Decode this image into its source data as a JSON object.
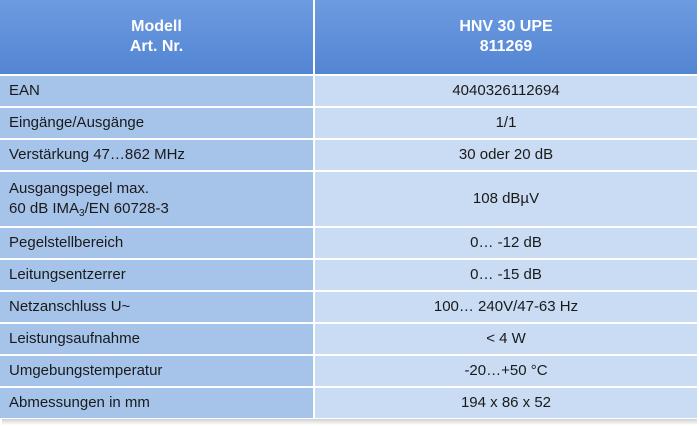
{
  "header": {
    "left": [
      "Modell",
      "Art. Nr."
    ],
    "right": [
      "HNV 30 UPE",
      "811269"
    ]
  },
  "rows": [
    {
      "label": [
        [
          "EAN"
        ]
      ],
      "value": "4040326112694"
    },
    {
      "label": [
        [
          "Eingänge/Ausgänge"
        ]
      ],
      "value": "1/1"
    },
    {
      "label": [
        [
          "Verstärkung 47…862 MHz"
        ]
      ],
      "value": "30 oder 20 dB"
    },
    {
      "label": [
        [
          "Ausgangspegel max."
        ],
        [
          "60 dB IMA",
          "3",
          "/EN 60728-3"
        ]
      ],
      "value": "108 dBµV"
    },
    {
      "label": [
        [
          "Pegelstellbereich"
        ]
      ],
      "value": "0… -12 dB"
    },
    {
      "label": [
        [
          "Leitungsentzerrer"
        ]
      ],
      "value": "0… -15 dB"
    },
    {
      "label": [
        [
          "Netzanschluss U~"
        ]
      ],
      "value": "100… 240V/47-63 Hz"
    },
    {
      "label": [
        [
          "Leistungsaufnahme"
        ]
      ],
      "value": "< 4 W"
    },
    {
      "label": [
        [
          "Umgebungstemperatur"
        ]
      ],
      "value": "-20…+50 °C"
    },
    {
      "label": [
        [
          "Abmessungen in mm"
        ]
      ],
      "value": "194 x 86 x 52"
    }
  ]
}
